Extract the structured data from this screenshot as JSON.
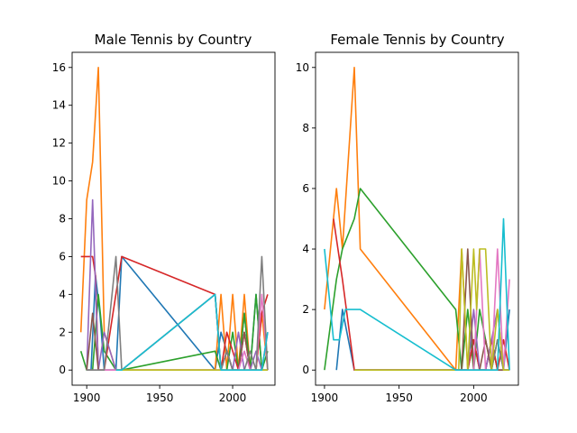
{
  "colors": [
    "#1f77b4",
    "#ff7f0e",
    "#2ca02c",
    "#d62728",
    "#9467bd",
    "#8c564b",
    "#e377c2",
    "#7f7f7f",
    "#bcbd22",
    "#17becf"
  ],
  "chart_data": [
    {
      "type": "line",
      "title": "Male Tennis by Country",
      "xlabel": "",
      "ylabel": "",
      "xlim": [
        1890,
        2029
      ],
      "ylim": [
        -0.8,
        16.8
      ],
      "xticks": [
        1900,
        1950,
        2000
      ],
      "yticks": [
        0,
        2,
        4,
        6,
        8,
        10,
        12,
        14,
        16
      ],
      "grid": false,
      "series": [
        {
          "color": "#1f77b4",
          "x": [
            1900,
            1903,
            1906,
            1909,
            1912,
            1920,
            1924,
            1988,
            1992,
            1996,
            2000,
            2004,
            2008,
            2012,
            2016,
            2020,
            2024
          ],
          "y": [
            0,
            0,
            5,
            3,
            0,
            0,
            6,
            0,
            2,
            1,
            0,
            0,
            3,
            0,
            4,
            0,
            0
          ]
        },
        {
          "color": "#ff7f0e",
          "x": [
            1896,
            1900,
            1904,
            1908,
            1912,
            1920,
            1924,
            1988,
            1992,
            1996,
            2000,
            2004,
            2008,
            2012,
            2016,
            2020,
            2024
          ],
          "y": [
            2,
            9,
            11,
            16,
            2,
            0,
            0,
            0,
            4,
            0,
            4,
            0,
            4,
            0,
            0,
            3,
            0
          ]
        },
        {
          "color": "#2ca02c",
          "x": [
            1896,
            1900,
            1904,
            1908,
            1912,
            1920,
            1924,
            1988,
            1992,
            1996,
            2000,
            2004,
            2008,
            2012,
            2016,
            2020,
            2024
          ],
          "y": [
            1,
            0,
            0,
            4,
            1,
            0,
            0,
            1,
            0,
            0,
            2,
            0,
            3,
            0,
            4,
            0,
            1
          ]
        },
        {
          "color": "#d62728",
          "x": [
            1896,
            1900,
            1904,
            1906,
            1908,
            1912,
            1924,
            1988,
            1992,
            1996,
            2000,
            2004,
            2008,
            2012,
            2016,
            2020,
            2024
          ],
          "y": [
            6,
            6,
            6,
            5,
            0,
            0,
            6,
            4,
            0,
            2,
            1,
            0,
            2,
            0,
            0,
            3,
            4
          ]
        },
        {
          "color": "#9467bd",
          "x": [
            1900,
            1904,
            1908,
            1912,
            1920,
            1924,
            1988,
            1992,
            1996,
            2000,
            2004,
            2008,
            2012,
            2016,
            2020,
            2024
          ],
          "y": [
            0,
            9,
            0,
            2,
            0,
            0,
            4,
            0,
            1,
            0,
            2,
            0,
            0,
            1,
            0,
            2
          ]
        },
        {
          "color": "#8c564b",
          "x": [
            1900,
            1904,
            1908,
            1912,
            1920,
            1924,
            1988,
            1992,
            1996,
            2000,
            2004,
            2008,
            2012,
            2016,
            2020,
            2024
          ],
          "y": [
            0,
            3,
            0,
            0,
            0,
            0,
            0,
            0,
            1,
            0,
            0,
            2,
            0,
            0,
            0,
            0
          ]
        },
        {
          "color": "#e377c2",
          "x": [
            1900,
            1908,
            1912,
            1920,
            1924,
            1988,
            1992,
            1996,
            2000,
            2004,
            2008,
            2012,
            2016,
            2020,
            2024
          ],
          "y": [
            0,
            0,
            0,
            0,
            0,
            0,
            0,
            0,
            0,
            0,
            1,
            0,
            0,
            4,
            0
          ]
        },
        {
          "color": "#7f7f7f",
          "x": [
            1900,
            1908,
            1912,
            1920,
            1924,
            1988,
            1992,
            1996,
            2000,
            2004,
            2008,
            2012,
            2016,
            2020,
            2024
          ],
          "y": [
            0,
            0,
            0,
            6,
            0,
            4,
            0,
            1,
            0,
            0,
            0,
            1,
            0,
            6,
            0
          ]
        },
        {
          "color": "#bcbd22",
          "x": [
            1920,
            1924,
            1988,
            1992,
            1996,
            2000,
            2004,
            2008,
            2012,
            2016,
            2020,
            2024
          ],
          "y": [
            0,
            0,
            0,
            0,
            0,
            0,
            0,
            0,
            0,
            0,
            0,
            0
          ]
        },
        {
          "color": "#17becf",
          "x": [
            1920,
            1924,
            1988,
            1992,
            1996,
            2000,
            2004,
            2008,
            2012,
            2016,
            2020,
            2024
          ],
          "y": [
            0,
            0,
            4,
            0,
            0,
            0,
            0,
            0,
            0,
            0,
            0,
            2
          ]
        }
      ]
    },
    {
      "type": "line",
      "title": "Female Tennis by Country",
      "xlabel": "",
      "ylabel": "",
      "xlim": [
        1894,
        2030
      ],
      "ylim": [
        -0.5,
        10.5
      ],
      "xticks": [
        1900,
        1950,
        2000
      ],
      "yticks": [
        0,
        2,
        4,
        6,
        8,
        10
      ],
      "grid": false,
      "series": [
        {
          "color": "#1f77b4",
          "x": [
            1908,
            1912,
            1920,
            1924,
            1988,
            1992,
            1996,
            2000,
            2004,
            2008,
            2012,
            2016,
            2020,
            2024
          ],
          "y": [
            0,
            2,
            0,
            0,
            0,
            0,
            0,
            1,
            0,
            0,
            1,
            0,
            0,
            2
          ]
        },
        {
          "color": "#ff7f0e",
          "x": [
            1900,
            1908,
            1912,
            1920,
            1924,
            1988,
            1992,
            1996,
            2000,
            2004,
            2008,
            2012,
            2016,
            2020,
            2024
          ],
          "y": [
            2,
            6,
            4,
            10,
            4,
            0,
            4,
            0,
            1,
            0,
            0,
            1,
            0,
            0,
            0
          ]
        },
        {
          "color": "#2ca02c",
          "x": [
            1900,
            1908,
            1912,
            1920,
            1924,
            1988,
            1992,
            1996,
            2000,
            2004,
            2008,
            2012,
            2016,
            2020,
            2024
          ],
          "y": [
            0,
            3,
            4,
            5,
            6,
            2,
            0,
            2,
            0,
            2,
            1,
            0,
            1,
            0,
            0
          ]
        },
        {
          "color": "#d62728",
          "x": [
            1906,
            1912,
            1920,
            1924,
            1988,
            1992,
            1996,
            2000,
            2004,
            2008,
            2012,
            2016,
            2020,
            2024
          ],
          "y": [
            5,
            3,
            0,
            0,
            0,
            0,
            0,
            1,
            0,
            0,
            1,
            0,
            1,
            0
          ]
        },
        {
          "color": "#9467bd",
          "x": [
            1920,
            1924,
            1988,
            1992,
            1996,
            2000,
            2004,
            2008,
            2012,
            2016,
            2020,
            2024
          ],
          "y": [
            0,
            0,
            0,
            0,
            0,
            2,
            0,
            0,
            1,
            2,
            0,
            0
          ]
        },
        {
          "color": "#8c564b",
          "x": [
            1920,
            1924,
            1988,
            1992,
            1996,
            2000,
            2004,
            2008,
            2012,
            2016,
            2020,
            2024
          ],
          "y": [
            0,
            0,
            0,
            0,
            4,
            0,
            0,
            1,
            0,
            0,
            0,
            0
          ]
        },
        {
          "color": "#e377c2",
          "x": [
            1920,
            1924,
            1988,
            1992,
            1996,
            2000,
            2004,
            2008,
            2012,
            2016,
            2020,
            2024
          ],
          "y": [
            0,
            0,
            0,
            0,
            0,
            0,
            4,
            0,
            0,
            4,
            0,
            3
          ]
        },
        {
          "color": "#7f7f7f",
          "x": [
            1920,
            1924,
            1988,
            1992,
            1996,
            2000,
            2004,
            2008,
            2012,
            2016,
            2020,
            2024
          ],
          "y": [
            0,
            0,
            0,
            0,
            0,
            0,
            0,
            0,
            0,
            1,
            0,
            0
          ]
        },
        {
          "color": "#bcbd22",
          "x": [
            1920,
            1924,
            1988,
            1990,
            1992,
            1996,
            2000,
            2002,
            2004,
            2006,
            2008,
            2012,
            2016,
            2020,
            2024
          ],
          "y": [
            0,
            0,
            0,
            0,
            4,
            0,
            4,
            2,
            4,
            4,
            4,
            0,
            2,
            0,
            0
          ]
        },
        {
          "color": "#17becf",
          "x": [
            1900,
            1906,
            1910,
            1914,
            1916,
            1920,
            1924,
            1988,
            1992,
            1994,
            1996,
            2000,
            2004,
            2006,
            2008,
            2010,
            2012,
            2016,
            2020,
            2024
          ],
          "y": [
            4,
            1,
            1,
            2,
            2,
            2,
            2,
            0,
            0,
            0,
            0,
            0,
            0,
            0,
            0,
            0,
            0,
            0,
            5,
            0
          ]
        }
      ]
    }
  ]
}
